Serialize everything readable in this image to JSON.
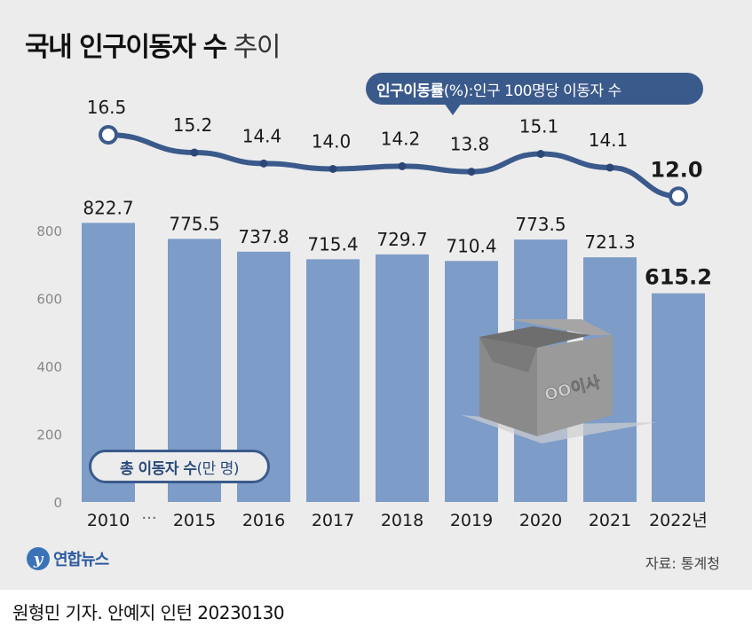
{
  "title": {
    "bold": "국내 인구이동자 수",
    "light": " 추이"
  },
  "rate_label": {
    "bold": "인구이동률",
    "light": "(%):인구 100명당 이동자 수"
  },
  "total_label": {
    "bold": "총 이동자 수",
    "light": "(만 명)"
  },
  "box_label": "OO이사",
  "axis_break": "···",
  "source": "자료: 통계청",
  "logo_text": "연합뉴스",
  "credit": "원형민 기자. 안예지 인턴  20230130",
  "colors": {
    "bar": "#7d9cc8",
    "line": "#3b5a8c",
    "pill": "#3b5a8c",
    "panel": "#ececec",
    "axis_text": "#888888"
  },
  "chart_data": [
    {
      "type": "bar",
      "title": "국내 인구이동자 수 추이",
      "categories": [
        "2010",
        "2015",
        "2016",
        "2017",
        "2018",
        "2019",
        "2020",
        "2021",
        "2022년"
      ],
      "values": [
        822.7,
        775.5,
        737.8,
        715.4,
        729.7,
        710.4,
        773.5,
        721.3,
        615.2
      ],
      "value_labels": [
        "822.7",
        "775.5",
        "737.8",
        "715.4",
        "729.7",
        "710.4",
        "773.5",
        "721.3",
        "615.2"
      ],
      "yticks": [
        "0",
        "200",
        "400",
        "600",
        "800"
      ],
      "ylim": [
        0,
        820
      ],
      "grid": false,
      "unit": "만 명"
    },
    {
      "type": "line",
      "categories": [
        "2010",
        "2015",
        "2016",
        "2017",
        "2018",
        "2019",
        "2020",
        "2021",
        "2022년"
      ],
      "values": [
        16.5,
        15.2,
        14.4,
        14.0,
        14.2,
        13.8,
        15.1,
        14.1,
        12.0
      ],
      "value_labels": [
        "16.5",
        "15.2",
        "14.4",
        "14.0",
        "14.2",
        "13.8",
        "15.1",
        "14.1",
        "12.0"
      ],
      "unit": "%"
    }
  ]
}
